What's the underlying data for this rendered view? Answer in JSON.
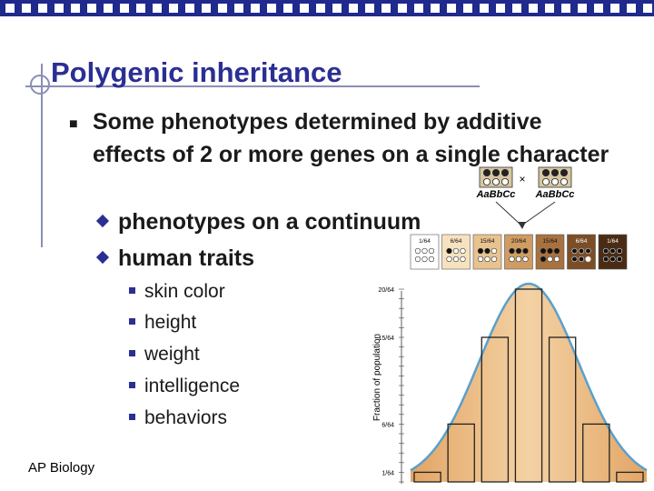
{
  "slide": {
    "title": "Polygenic inheritance",
    "bullet": "Some phenotypes determined by additive effects of 2 or more genes on a single character",
    "sub_bullets": [
      "phenotypes on a continuum",
      "human traits"
    ],
    "traits": [
      "skin color",
      "height",
      "weight",
      "intelligence",
      "behaviors"
    ],
    "footer": "AP Biology"
  },
  "figure": {
    "parent_label": "AaBbCc",
    "cross_symbol": "×",
    "ylabel": "Fraction of population",
    "colors": {
      "bell_fill": "#f2c28e",
      "curve": "#5aa0cc",
      "bar_stroke": "#222222"
    }
  },
  "chart_data": {
    "type": "bar",
    "categories": [
      "1/64",
      "6/64",
      "15/64",
      "20/64",
      "15/64",
      "6/64",
      "1/64"
    ],
    "values": [
      1,
      6,
      15,
      20,
      15,
      6,
      1
    ],
    "ylabel": "Fraction of population",
    "yticks": [
      "20/64",
      "15/64",
      "6/64",
      "1/64"
    ],
    "grid": false
  }
}
